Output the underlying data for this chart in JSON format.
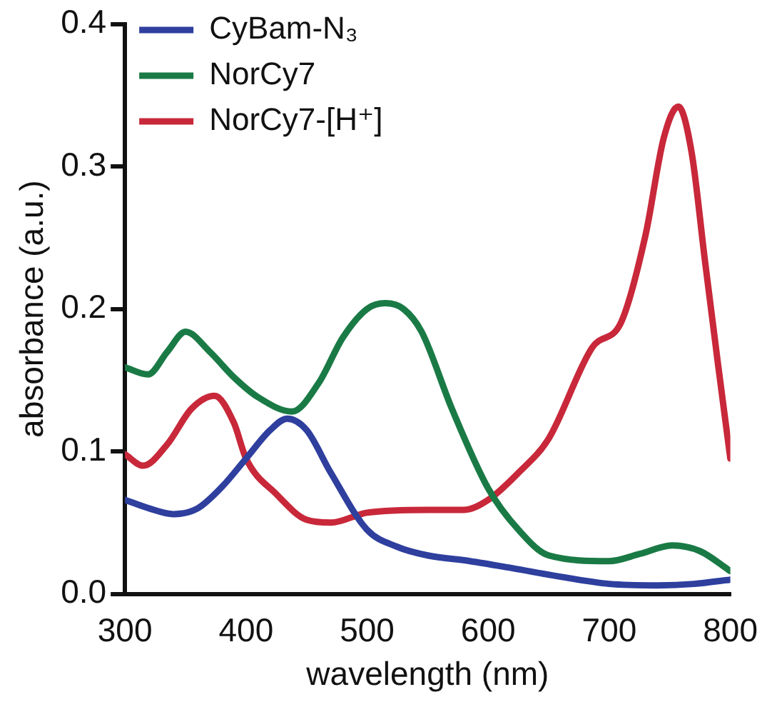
{
  "chart_data": {
    "type": "line",
    "xlabel": "wavelength (nm)",
    "ylabel": "absorbance (a.u.)",
    "xlim": [
      300,
      800
    ],
    "xticks": [
      300,
      400,
      500,
      600,
      700,
      800
    ],
    "ylim": [
      0,
      0.4
    ],
    "yticks": [
      {
        "value": 0,
        "label": "0.0"
      },
      {
        "value": 0.1,
        "label": "0.1"
      },
      {
        "value": 0.2,
        "label": "0.2"
      },
      {
        "value": 0.3,
        "label": "0.3"
      },
      {
        "value": 0.4,
        "label": "0.4"
      }
    ],
    "grid": false,
    "legend": "top left",
    "marker": "none",
    "line_style": "solid",
    "series": [
      {
        "name": "CyBam-N₃",
        "color": "#2e3f9e",
        "x": [
          300,
          320,
          340,
          360,
          380,
          400,
          420,
          434,
          450,
          470,
          500,
          525,
          550,
          585,
          620,
          660,
          700,
          740,
          770,
          800
        ],
        "values": [
          0.066,
          0.06,
          0.056,
          0.06,
          0.075,
          0.095,
          0.115,
          0.123,
          0.115,
          0.085,
          0.045,
          0.033,
          0.027,
          0.023,
          0.018,
          0.012,
          0.007,
          0.006,
          0.007,
          0.01
        ]
      },
      {
        "name": "NorCy7",
        "color": "#1a7a45",
        "x": [
          300,
          319,
          335,
          350,
          370,
          390,
          410,
          438,
          460,
          480,
          500,
          515,
          530,
          545,
          570,
          600,
          625,
          650,
          700,
          725,
          752,
          775,
          800
        ],
        "values": [
          0.159,
          0.154,
          0.17,
          0.184,
          0.17,
          0.152,
          0.138,
          0.128,
          0.148,
          0.18,
          0.2,
          0.204,
          0.2,
          0.184,
          0.13,
          0.074,
          0.045,
          0.027,
          0.023,
          0.028,
          0.034,
          0.03,
          0.016
        ]
      },
      {
        "name": "NorCy7-[H⁺]",
        "color": "#c8283a",
        "x": [
          300,
          315,
          335,
          355,
          374,
          390,
          400,
          425,
          450,
          470,
          500,
          550,
          580,
          600,
          625,
          650,
          686,
          710,
          730,
          745,
          757,
          768,
          779,
          790,
          800
        ],
        "values": [
          0.098,
          0.09,
          0.105,
          0.13,
          0.139,
          0.12,
          0.095,
          0.07,
          0.052,
          0.05,
          0.057,
          0.059,
          0.059,
          0.066,
          0.085,
          0.109,
          0.173,
          0.191,
          0.252,
          0.32,
          0.342,
          0.31,
          0.234,
          0.16,
          0.095
        ]
      }
    ]
  }
}
